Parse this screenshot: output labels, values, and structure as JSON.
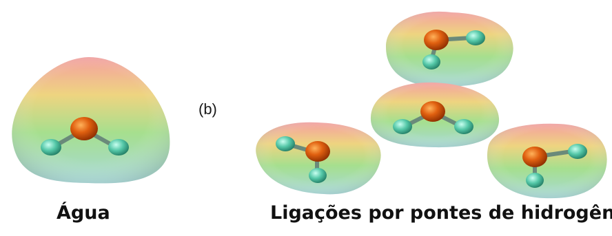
{
  "panel_label": "(b)",
  "captions": {
    "single": "Água",
    "network": "Ligações por pontes de hidrogênio"
  },
  "colors": {
    "oxygen": "#d9530c",
    "hydrogen": "#49c3a4",
    "surface_positive": "#f08080",
    "surface_neutral": "#e8e070",
    "surface_negative": "#6fcf8f",
    "surface_low": "#9fd8d8"
  }
}
